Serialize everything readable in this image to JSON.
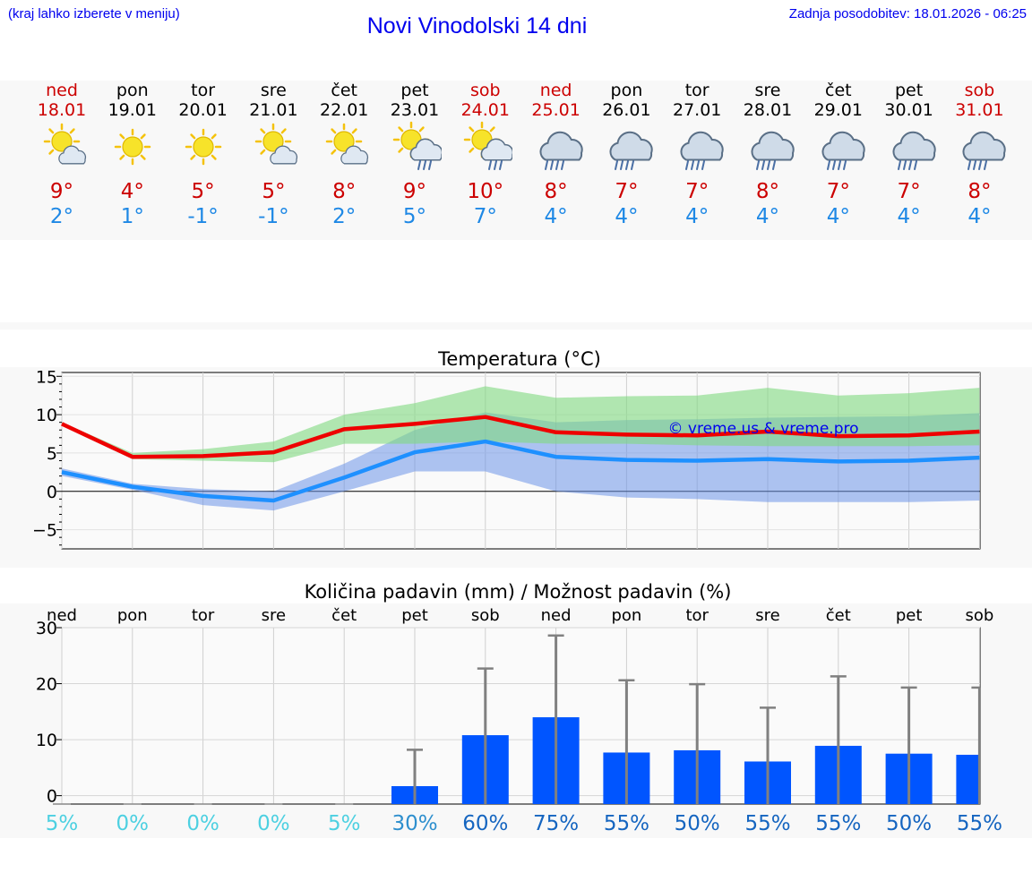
{
  "header": {
    "note_left": "(kraj lahko izberete v meniju)",
    "title": "Novi Vinodolski 14 dni",
    "updated": "Zadnja posodobitev: 18.01.2026 - 06:25"
  },
  "colors": {
    "weekend": "#cc0000",
    "max_line": "#ee0000",
    "min_line": "#1e90ff",
    "max_band": "#7fd87f",
    "min_band": "#6b93e8",
    "bar": "#0055ff",
    "err": "#808080"
  },
  "days": [
    {
      "name": "ned",
      "date": "18.01",
      "weekend": true,
      "icon": "sun-cloud-icon",
      "tmax": "9°",
      "tmin": "2°"
    },
    {
      "name": "pon",
      "date": "19.01",
      "weekend": false,
      "icon": "sun-icon",
      "tmax": "4°",
      "tmin": "1°"
    },
    {
      "name": "tor",
      "date": "20.01",
      "weekend": false,
      "icon": "sun-icon",
      "tmax": "5°",
      "tmin": "-1°"
    },
    {
      "name": "sre",
      "date": "21.01",
      "weekend": false,
      "icon": "sun-cloud-icon",
      "tmax": "5°",
      "tmin": "-1°"
    },
    {
      "name": "čet",
      "date": "22.01",
      "weekend": false,
      "icon": "sun-cloud-icon",
      "tmax": "8°",
      "tmin": "2°"
    },
    {
      "name": "pet",
      "date": "23.01",
      "weekend": false,
      "icon": "sun-cloud-rain-icon",
      "tmax": "9°",
      "tmin": "5°"
    },
    {
      "name": "sob",
      "date": "24.01",
      "weekend": true,
      "icon": "sun-cloud-rain-icon",
      "tmax": "10°",
      "tmin": "7°"
    },
    {
      "name": "ned",
      "date": "25.01",
      "weekend": true,
      "icon": "cloud-rain-icon",
      "tmax": "8°",
      "tmin": "4°"
    },
    {
      "name": "pon",
      "date": "26.01",
      "weekend": false,
      "icon": "cloud-rain-icon",
      "tmax": "7°",
      "tmin": "4°"
    },
    {
      "name": "tor",
      "date": "27.01",
      "weekend": false,
      "icon": "cloud-rain-icon",
      "tmax": "7°",
      "tmin": "4°"
    },
    {
      "name": "sre",
      "date": "28.01",
      "weekend": false,
      "icon": "cloud-rain-icon",
      "tmax": "8°",
      "tmin": "4°"
    },
    {
      "name": "čet",
      "date": "29.01",
      "weekend": false,
      "icon": "cloud-rain-icon",
      "tmax": "7°",
      "tmin": "4°"
    },
    {
      "name": "pet",
      "date": "30.01",
      "weekend": false,
      "icon": "cloud-rain-icon",
      "tmax": "7°",
      "tmin": "4°"
    },
    {
      "name": "sob",
      "date": "31.01",
      "weekend": true,
      "icon": "cloud-rain-icon",
      "tmax": "8°",
      "tmin": "4°"
    }
  ],
  "chart_data": [
    {
      "type": "line",
      "title": "Temperatura (°C)",
      "watermark": "© vreme.us & vreme.pro",
      "ylim": [
        -7.5,
        15.5
      ],
      "yticks": [
        "−5",
        "0",
        "5",
        "10",
        "15"
      ],
      "ytick_values": [
        -5,
        0,
        5,
        10,
        15
      ],
      "x": [
        0,
        1,
        2,
        3,
        4,
        5,
        6,
        7,
        8,
        9,
        10,
        11,
        12,
        13
      ],
      "series": [
        {
          "name": "max",
          "values": [
            8.8,
            4.5,
            4.6,
            5.1,
            8.1,
            8.8,
            9.7,
            7.7,
            7.4,
            7.3,
            7.8,
            7.2,
            7.3,
            7.8
          ],
          "band_low": [
            8.6,
            4.2,
            4.0,
            3.8,
            6.2,
            6.2,
            6.5,
            6.2,
            6.2,
            6.0,
            5.9,
            5.9,
            5.9,
            6.0
          ],
          "band_high": [
            9.0,
            5.0,
            5.5,
            6.5,
            10.0,
            11.5,
            13.7,
            12.2,
            12.4,
            12.5,
            13.5,
            12.5,
            12.8,
            13.5
          ]
        },
        {
          "name": "min",
          "values": [
            2.5,
            0.6,
            -0.6,
            -1.2,
            1.8,
            5.1,
            6.5,
            4.5,
            4.1,
            4.0,
            4.2,
            3.9,
            4.0,
            4.4
          ],
          "band_low": [
            2.0,
            0.2,
            -1.8,
            -2.5,
            0.0,
            2.6,
            2.6,
            0.0,
            -0.8,
            -1.0,
            -1.4,
            -1.4,
            -1.4,
            -1.2
          ],
          "band_high": [
            3.0,
            1.0,
            0.3,
            0.0,
            3.6,
            8.0,
            10.3,
            9.0,
            9.3,
            9.4,
            9.6,
            9.7,
            9.8,
            10.2
          ]
        }
      ]
    },
    {
      "type": "bar",
      "title": "Količina padavin (mm) / Možnost padavin (%)",
      "ylim": [
        -1.5,
        30
      ],
      "yticks": [
        "0",
        "10",
        "20",
        "30"
      ],
      "ytick_values": [
        0,
        10,
        20,
        30
      ],
      "categories": [
        "ned",
        "pon",
        "tor",
        "sre",
        "čet",
        "pet",
        "sob",
        "ned",
        "pon",
        "tor",
        "sre",
        "čet",
        "pet",
        "sob"
      ],
      "values": [
        0,
        0,
        0,
        0,
        0,
        1.7,
        10.8,
        14.0,
        7.7,
        8.1,
        6.1,
        8.9,
        7.5,
        7.3
      ],
      "err_high": [
        0,
        0,
        0,
        0,
        0,
        8.2,
        22.7,
        28.6,
        20.6,
        19.9,
        15.7,
        21.3,
        19.3,
        19.3
      ],
      "probability": [
        "5%",
        "0%",
        "0%",
        "0%",
        "5%",
        "30%",
        "60%",
        "75%",
        "55%",
        "50%",
        "55%",
        "55%",
        "50%",
        "55%"
      ],
      "probability_colors": [
        "#4dd0e1",
        "#4dd0e1",
        "#4dd0e1",
        "#4dd0e1",
        "#4dd0e1",
        "#2e8fce",
        "#1565c0",
        "#1565c0",
        "#1565c0",
        "#1565c0",
        "#1565c0",
        "#1565c0",
        "#1565c0",
        "#1565c0"
      ]
    }
  ]
}
